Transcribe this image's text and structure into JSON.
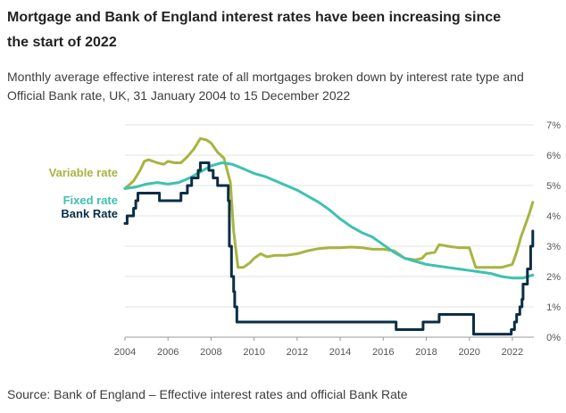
{
  "title": "Mortgage and Bank of England interest rates have been increasing since the start of 2022",
  "subtitle": "Monthly average effective interest rate of all mortgages broken down by interest rate type and Official Bank rate, UK, 31 January 2004 to 15 December 2022",
  "source": "Source: Bank of England – Effective interest rates and official Bank Rate",
  "chart_data": {
    "type": "line",
    "xlim": [
      2004,
      2023
    ],
    "ylim": [
      0,
      7
    ],
    "x_ticks": [
      2004,
      2006,
      2008,
      2010,
      2012,
      2014,
      2016,
      2018,
      2020,
      2022
    ],
    "x_tick_labels": [
      "2004",
      "2006",
      "2008",
      "2010",
      "2012",
      "2014",
      "2016",
      "2018",
      "2020",
      "2022"
    ],
    "y_ticks": [
      0,
      1,
      2,
      3,
      4,
      5,
      6,
      7
    ],
    "y_tick_labels": [
      "0%",
      "1%",
      "2%",
      "3%",
      "4%",
      "5%",
      "6%",
      "7%"
    ],
    "grid": "horizontal",
    "legend": "left, inline labels",
    "series": [
      {
        "name": "Variable rate",
        "color": "#a8b440",
        "step": false,
        "points": [
          [
            2004.0,
            4.9
          ],
          [
            2004.4,
            5.15
          ],
          [
            2004.7,
            5.5
          ],
          [
            2004.9,
            5.8
          ],
          [
            2005.1,
            5.85
          ],
          [
            2005.5,
            5.75
          ],
          [
            2005.8,
            5.7
          ],
          [
            2006.0,
            5.8
          ],
          [
            2006.3,
            5.75
          ],
          [
            2006.6,
            5.75
          ],
          [
            2006.9,
            5.95
          ],
          [
            2007.2,
            6.2
          ],
          [
            2007.5,
            6.55
          ],
          [
            2007.8,
            6.5
          ],
          [
            2008.0,
            6.4
          ],
          [
            2008.3,
            6.1
          ],
          [
            2008.6,
            5.9
          ],
          [
            2008.9,
            5.1
          ],
          [
            2009.05,
            3.5
          ],
          [
            2009.25,
            2.3
          ],
          [
            2009.5,
            2.3
          ],
          [
            2009.8,
            2.45
          ],
          [
            2010.0,
            2.6
          ],
          [
            2010.3,
            2.75
          ],
          [
            2010.6,
            2.65
          ],
          [
            2011.0,
            2.7
          ],
          [
            2011.5,
            2.7
          ],
          [
            2012.0,
            2.75
          ],
          [
            2012.5,
            2.85
          ],
          [
            2013.0,
            2.92
          ],
          [
            2013.5,
            2.95
          ],
          [
            2014.0,
            2.95
          ],
          [
            2014.5,
            2.97
          ],
          [
            2015.0,
            2.95
          ],
          [
            2015.5,
            2.9
          ],
          [
            2016.0,
            2.9
          ],
          [
            2016.5,
            2.85
          ],
          [
            2017.0,
            2.6
          ],
          [
            2017.5,
            2.55
          ],
          [
            2017.8,
            2.6
          ],
          [
            2018.0,
            2.75
          ],
          [
            2018.4,
            2.8
          ],
          [
            2018.6,
            3.05
          ],
          [
            2019.0,
            3.0
          ],
          [
            2019.5,
            2.95
          ],
          [
            2020.0,
            2.95
          ],
          [
            2020.3,
            2.3
          ],
          [
            2020.6,
            2.3
          ],
          [
            2021.0,
            2.3
          ],
          [
            2021.5,
            2.3
          ],
          [
            2022.0,
            2.4
          ],
          [
            2022.2,
            2.8
          ],
          [
            2022.4,
            3.3
          ],
          [
            2022.6,
            3.7
          ],
          [
            2022.8,
            4.1
          ],
          [
            2022.95,
            4.45
          ]
        ]
      },
      {
        "name": "Fixed rate",
        "color": "#3ec1b1",
        "step": false,
        "points": [
          [
            2004.0,
            4.9
          ],
          [
            2004.5,
            4.95
          ],
          [
            2005.0,
            5.05
          ],
          [
            2005.5,
            5.1
          ],
          [
            2006.0,
            5.05
          ],
          [
            2006.5,
            5.1
          ],
          [
            2007.0,
            5.25
          ],
          [
            2007.5,
            5.45
          ],
          [
            2008.0,
            5.65
          ],
          [
            2008.5,
            5.75
          ],
          [
            2009.0,
            5.7
          ],
          [
            2009.5,
            5.55
          ],
          [
            2010.0,
            5.4
          ],
          [
            2010.5,
            5.3
          ],
          [
            2011.0,
            5.15
          ],
          [
            2011.5,
            5.0
          ],
          [
            2012.0,
            4.85
          ],
          [
            2012.5,
            4.65
          ],
          [
            2013.0,
            4.45
          ],
          [
            2013.5,
            4.2
          ],
          [
            2014.0,
            3.9
          ],
          [
            2014.5,
            3.65
          ],
          [
            2015.0,
            3.45
          ],
          [
            2015.5,
            3.3
          ],
          [
            2016.0,
            3.05
          ],
          [
            2016.5,
            2.8
          ],
          [
            2017.0,
            2.6
          ],
          [
            2017.5,
            2.5
          ],
          [
            2018.0,
            2.4
          ],
          [
            2018.5,
            2.35
          ],
          [
            2019.0,
            2.3
          ],
          [
            2019.5,
            2.25
          ],
          [
            2020.0,
            2.2
          ],
          [
            2020.5,
            2.15
          ],
          [
            2021.0,
            2.1
          ],
          [
            2021.5,
            2.0
          ],
          [
            2022.0,
            1.95
          ],
          [
            2022.5,
            1.95
          ],
          [
            2022.95,
            2.05
          ]
        ]
      },
      {
        "name": "Bank Rate",
        "color": "#0a2e45",
        "step": true,
        "points": [
          [
            2004.0,
            3.75
          ],
          [
            2004.1,
            4.0
          ],
          [
            2004.4,
            4.25
          ],
          [
            2004.5,
            4.5
          ],
          [
            2004.6,
            4.75
          ],
          [
            2005.6,
            4.5
          ],
          [
            2006.6,
            4.75
          ],
          [
            2006.9,
            5.0
          ],
          [
            2007.1,
            5.25
          ],
          [
            2007.4,
            5.5
          ],
          [
            2007.5,
            5.75
          ],
          [
            2007.9,
            5.5
          ],
          [
            2008.1,
            5.25
          ],
          [
            2008.3,
            5.0
          ],
          [
            2008.8,
            4.5
          ],
          [
            2008.85,
            3.0
          ],
          [
            2008.95,
            2.0
          ],
          [
            2009.05,
            1.5
          ],
          [
            2009.1,
            1.0
          ],
          [
            2009.2,
            0.5
          ],
          [
            2016.6,
            0.25
          ],
          [
            2017.85,
            0.5
          ],
          [
            2018.6,
            0.75
          ],
          [
            2020.2,
            0.1
          ],
          [
            2021.95,
            0.25
          ],
          [
            2022.1,
            0.5
          ],
          [
            2022.2,
            0.75
          ],
          [
            2022.35,
            1.0
          ],
          [
            2022.45,
            1.25
          ],
          [
            2022.5,
            1.75
          ],
          [
            2022.7,
            2.25
          ],
          [
            2022.85,
            3.0
          ],
          [
            2022.95,
            3.5
          ]
        ]
      }
    ],
    "labels": [
      {
        "series": "Variable rate",
        "text": "Variable rate",
        "color": "#a8b440"
      },
      {
        "series": "Fixed rate",
        "text": "Fixed rate",
        "color": "#3ec1b1"
      },
      {
        "series": "Bank Rate",
        "text": "Bank Rate",
        "color": "#0a2e45"
      }
    ]
  }
}
